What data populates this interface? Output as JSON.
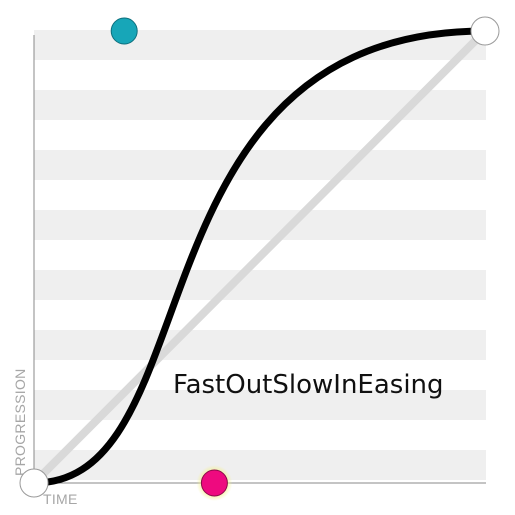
{
  "easing": {
    "name": "FastOutSlowInEasing",
    "control_point_1": [
      0.4,
      0.0
    ],
    "control_point_2": [
      0.2,
      1.0
    ]
  },
  "axes": {
    "x_label": "TIME",
    "y_label": "PROGRESSION"
  },
  "colors": {
    "background": "#ffffff",
    "stripe": "#efefef",
    "curve": "#000000",
    "linear_reference": "#d9d9d9",
    "handle_line": "#555555",
    "handle_1": "#ee0a7f",
    "handle_1_glow": "#f3f08a",
    "handle_2": "#17a6b8",
    "endpoint_fill": "#ffffff",
    "endpoint_stroke": "#9a9a9a",
    "axis": "#8a8a8a"
  }
}
